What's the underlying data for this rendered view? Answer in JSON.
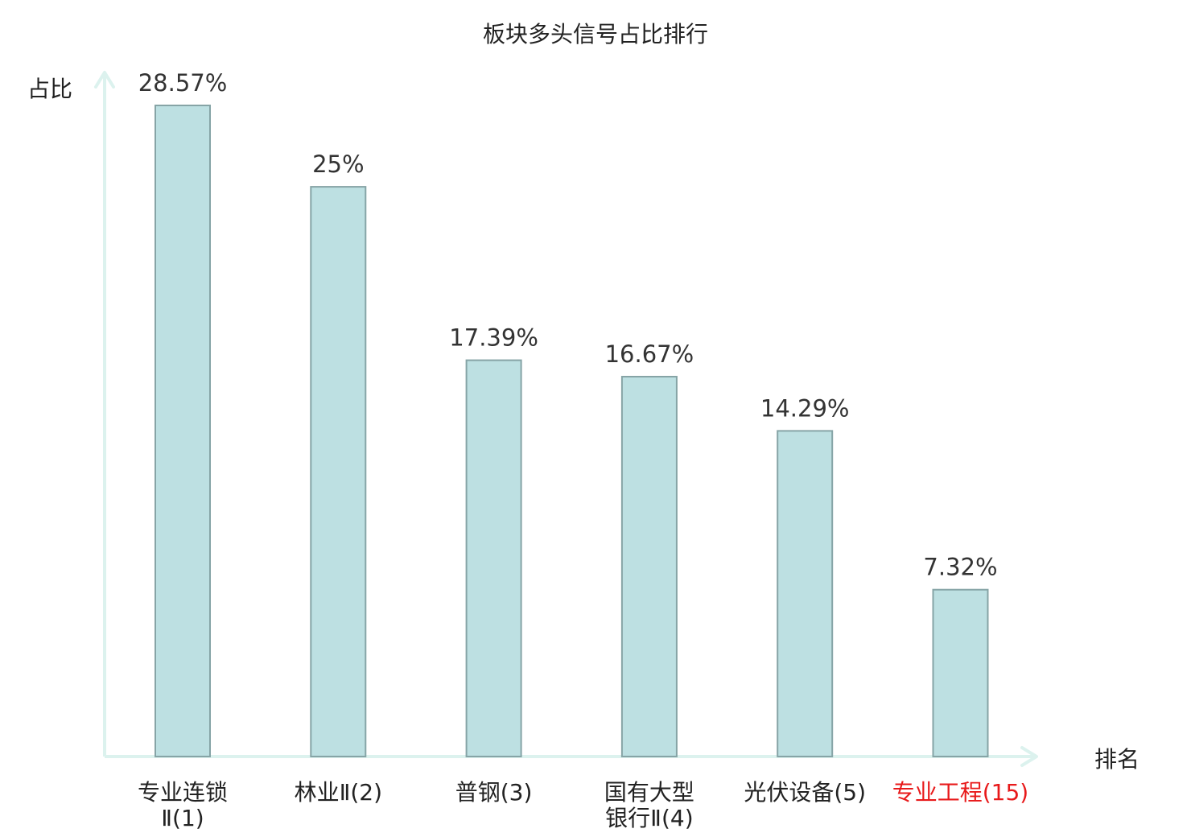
{
  "chart_data": {
    "type": "bar",
    "title": "板块多头信号占比排行",
    "xlabel": "排名",
    "ylabel": "占比",
    "ylim": [
      0,
      28.57
    ],
    "grid": false,
    "legend": "none",
    "bar_fill": "#bde0e2",
    "bar_stroke": "#86a4a6",
    "axis_color": "#dcf2ee",
    "default_label_color": "#222222",
    "highlight_color": "#e8191a",
    "value_suffix": "%",
    "categories": [
      {
        "lines": [
          "专业连锁",
          "Ⅱ(1)"
        ],
        "highlight": false
      },
      {
        "lines": [
          "林业Ⅱ(2)"
        ],
        "highlight": false
      },
      {
        "lines": [
          "普钢(3)"
        ],
        "highlight": false
      },
      {
        "lines": [
          "国有大型",
          "银行Ⅱ(4)"
        ],
        "highlight": false
      },
      {
        "lines": [
          "光伏设备(5)"
        ],
        "highlight": false
      },
      {
        "lines": [
          "专业工程(15)"
        ],
        "highlight": true
      }
    ],
    "values": [
      28.57,
      25,
      17.39,
      16.67,
      14.29,
      7.32
    ],
    "value_labels": [
      "28.57%",
      "25%",
      "17.39%",
      "16.67%",
      "14.29%",
      "7.32%"
    ]
  }
}
